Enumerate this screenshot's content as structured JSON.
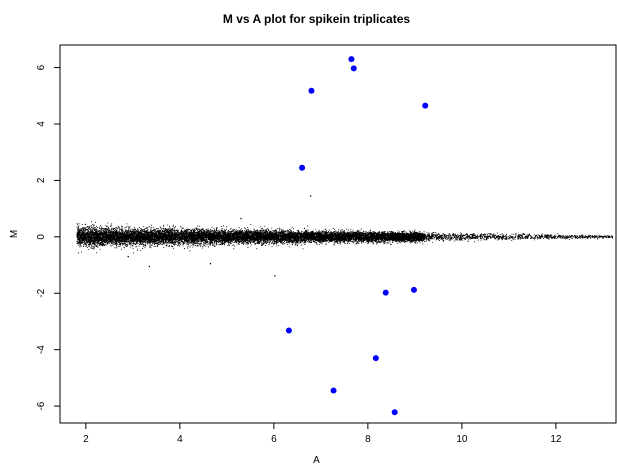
{
  "chart_data": {
    "type": "scatter",
    "title": "M vs A plot for spikein triplicates",
    "xlabel": "A",
    "ylabel": "M",
    "xlim": [
      1.45,
      13.3
    ],
    "ylim": [
      -6.6,
      6.8
    ],
    "x_ticks": [
      2,
      4,
      6,
      8,
      10,
      12
    ],
    "y_ticks": [
      -6,
      -4,
      -2,
      0,
      2,
      4,
      6
    ],
    "grid": false,
    "legend": "none",
    "colors": {
      "background_points": "#000000",
      "highlight_points": "#0000ff",
      "axis": "#000000"
    },
    "background_cloud": {
      "description_of_density": "dense band of ~20000 small black points centered at M=0",
      "x_range": [
        1.8,
        13.2
      ],
      "m_center": 0,
      "m_spread_at_low_a": 0.35,
      "m_spread_at_high_a": 0.05
    },
    "background_outliers": [
      {
        "x": 6.78,
        "y": 1.45
      },
      {
        "x": 6.02,
        "y": -1.38
      },
      {
        "x": 3.35,
        "y": -1.05
      },
      {
        "x": 4.65,
        "y": -0.95
      },
      {
        "x": 2.9,
        "y": -0.7
      },
      {
        "x": 5.3,
        "y": 0.65
      }
    ],
    "series": [
      {
        "points": [
          {
            "x": 7.65,
            "y": 6.3
          },
          {
            "x": 7.7,
            "y": 5.97
          },
          {
            "x": 6.8,
            "y": 5.18
          },
          {
            "x": 9.22,
            "y": 4.65
          },
          {
            "x": 6.6,
            "y": 2.45
          },
          {
            "x": 8.38,
            "y": -1.98
          },
          {
            "x": 8.98,
            "y": -1.88
          },
          {
            "x": 6.32,
            "y": -3.32
          },
          {
            "x": 8.17,
            "y": -4.3
          },
          {
            "x": 7.27,
            "y": -5.45
          },
          {
            "x": 8.57,
            "y": -6.22
          }
        ]
      }
    ]
  }
}
